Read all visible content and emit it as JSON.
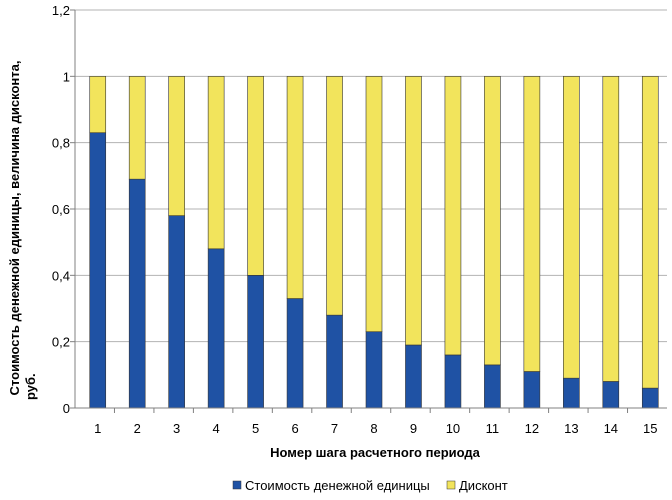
{
  "chart_data": {
    "type": "bar",
    "stacked": true,
    "categories": [
      "1",
      "2",
      "3",
      "4",
      "5",
      "6",
      "7",
      "8",
      "9",
      "10",
      "11",
      "12",
      "13",
      "14",
      "15"
    ],
    "series": [
      {
        "name": "Стоимость денежной единицы",
        "color": "#1f52a4",
        "values": [
          0.83,
          0.69,
          0.58,
          0.48,
          0.4,
          0.33,
          0.28,
          0.23,
          0.19,
          0.16,
          0.13,
          0.11,
          0.09,
          0.08,
          0.06
        ]
      },
      {
        "name": "Дисконт",
        "color": "#f2e45c",
        "values": [
          0.17,
          0.31,
          0.42,
          0.52,
          0.6,
          0.67,
          0.72,
          0.77,
          0.81,
          0.84,
          0.87,
          0.89,
          0.91,
          0.92,
          0.94
        ]
      }
    ],
    "xlabel": "Номер шага расчетного периода",
    "ylabel_lines": [
      "Стоимость денежной единицы, величина дисконта,",
      "руб."
    ],
    "ylim": [
      0,
      1.2
    ],
    "yticks": [
      "0",
      "0,2",
      "0,4",
      "0,6",
      "0,8",
      "1",
      "1,2"
    ],
    "grid": true,
    "legend_position": "bottom"
  }
}
